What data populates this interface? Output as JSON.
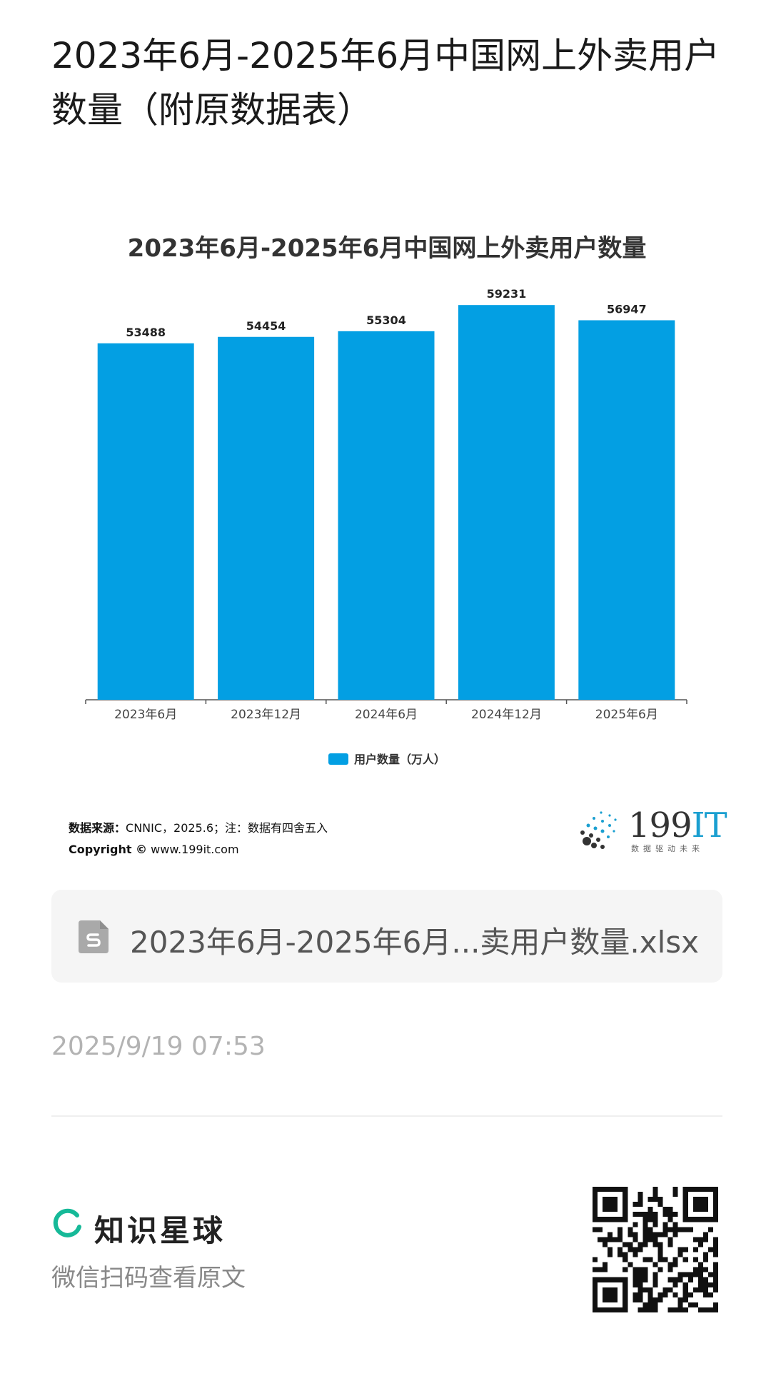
{
  "page_title": "2023年6月-2025年6月中国网上外卖用户数量（附原数据表）",
  "chart_data": {
    "type": "bar",
    "title": "2023年6月-2025年6月中国网上外卖用户数量",
    "categories": [
      "2023年6月",
      "2023年12月",
      "2024年6月",
      "2024年12月",
      "2025年6月"
    ],
    "series": [
      {
        "name": "用户数量（万人）",
        "values": [
          53488,
          54454,
          55304,
          59231,
          56947
        ]
      }
    ],
    "ylim": [
      0,
      60000
    ],
    "grid": false,
    "legend_position": "bottom",
    "bar_color": "#039fe3"
  },
  "source": {
    "label": "数据来源：",
    "text": "CNNIC，2025.6；注：数据有四舍五入",
    "copyright_label": "Copyright ©",
    "copyright_url": "www.199it.com"
  },
  "logo": {
    "main": "199",
    "accent": "IT",
    "tagline": "数据驱动未来"
  },
  "file": {
    "name": "2023年6月-2025年6月...卖用户数量.xlsx",
    "icon": "spreadsheet-icon"
  },
  "timestamp": "2025/9/19 07:53",
  "footer": {
    "brand": "知识星球",
    "hint": "微信扫码查看原文",
    "brand_color": "#16b998"
  }
}
